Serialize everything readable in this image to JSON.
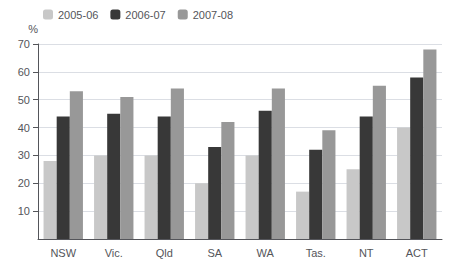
{
  "chart_data": {
    "type": "bar",
    "ylabel": "%",
    "categories": [
      "NSW",
      "Vic.",
      "Qld",
      "SA",
      "WA",
      "Tas.",
      "NT",
      "ACT"
    ],
    "series": [
      {
        "name": "2005-06",
        "color": "#c8c8c8",
        "values": [
          28,
          30,
          30,
          20,
          30,
          17,
          25,
          40
        ]
      },
      {
        "name": "2006-07",
        "color": "#383838",
        "values": [
          44,
          45,
          44,
          33,
          46,
          32,
          44,
          58
        ]
      },
      {
        "name": "2007-08",
        "color": "#989898",
        "values": [
          53,
          51,
          54,
          42,
          54,
          39,
          55,
          68
        ]
      }
    ],
    "ylim": [
      0,
      70
    ],
    "yticks": [
      10,
      20,
      30,
      40,
      50,
      60,
      70
    ],
    "grid": true,
    "legend": "upper left"
  }
}
